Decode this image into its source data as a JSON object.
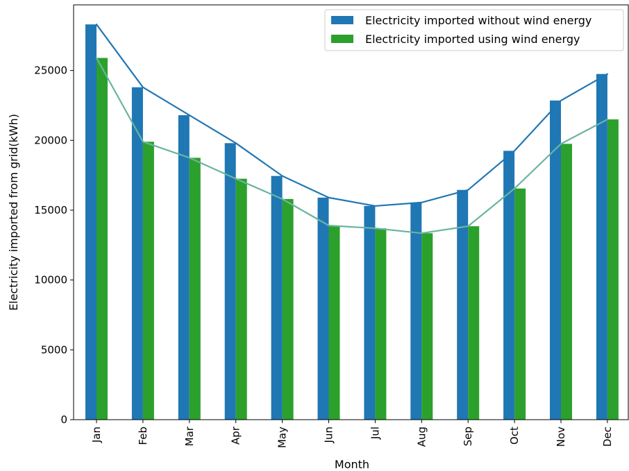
{
  "chart_data": {
    "type": "bar",
    "title": "",
    "xlabel": "Month",
    "ylabel": "Electricity imported from grid(kWh)",
    "categories": [
      "Jan",
      "Feb",
      "Mar",
      "Apr",
      "May",
      "Jun",
      "Jul",
      "Aug",
      "Sep",
      "Oct",
      "Nov",
      "Dec"
    ],
    "series": [
      {
        "name": "Electricity imported without wind energy",
        "color": "#1f77b4",
        "line_color": "#1f77b4",
        "values": [
          28300,
          23800,
          21800,
          19800,
          17450,
          15900,
          15300,
          15550,
          16450,
          19250,
          22850,
          24750
        ]
      },
      {
        "name": "Electricity imported using wind energy",
        "color": "#2ca02c",
        "line_color": "#6ab5a0",
        "values": [
          25900,
          19900,
          18750,
          17250,
          15800,
          13900,
          13700,
          13350,
          13850,
          16550,
          19750,
          21500
        ]
      }
    ],
    "ylim": [
      0,
      29700
    ],
    "yticks": [
      0,
      5000,
      10000,
      15000,
      20000,
      25000
    ],
    "legend": "top-right",
    "grid": false
  }
}
